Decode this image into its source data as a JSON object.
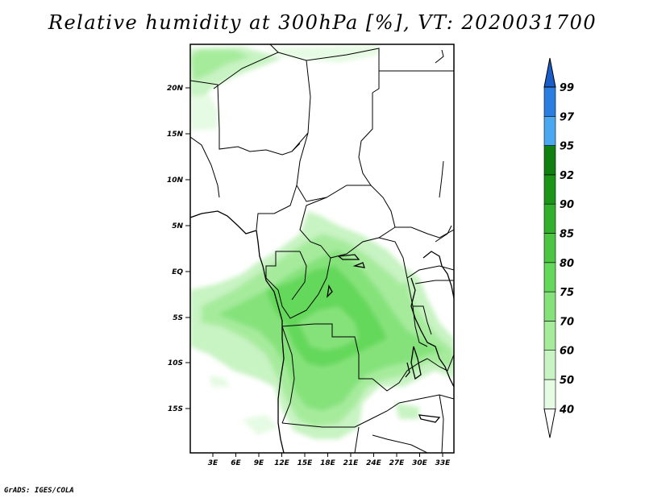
{
  "title": "Relative humidity at 300hPa [%], VT: 2020031700",
  "credit": "GrADS: IGES/COLA",
  "map": {
    "lat_ticks": [
      "20N",
      "15N",
      "10N",
      "5N",
      "EQ",
      "5S",
      "10S",
      "15S"
    ],
    "lon_ticks": [
      "3E",
      "6E",
      "9E",
      "12E",
      "15E",
      "18E",
      "21E",
      "24E",
      "27E",
      "30E",
      "33E"
    ]
  },
  "colorbar": {
    "levels": [
      "40",
      "50",
      "60",
      "70",
      "75",
      "80",
      "85",
      "90",
      "92",
      "95",
      "97",
      "99"
    ],
    "colors": [
      "#ffffff",
      "#e6fbe3",
      "#c8f3c2",
      "#a6eb9c",
      "#85e27a",
      "#64d85a",
      "#4cc642",
      "#33b02b",
      "#1c9417",
      "#108010",
      "#4aa8f0",
      "#2a7ee0",
      "#1a5cc8"
    ]
  }
}
